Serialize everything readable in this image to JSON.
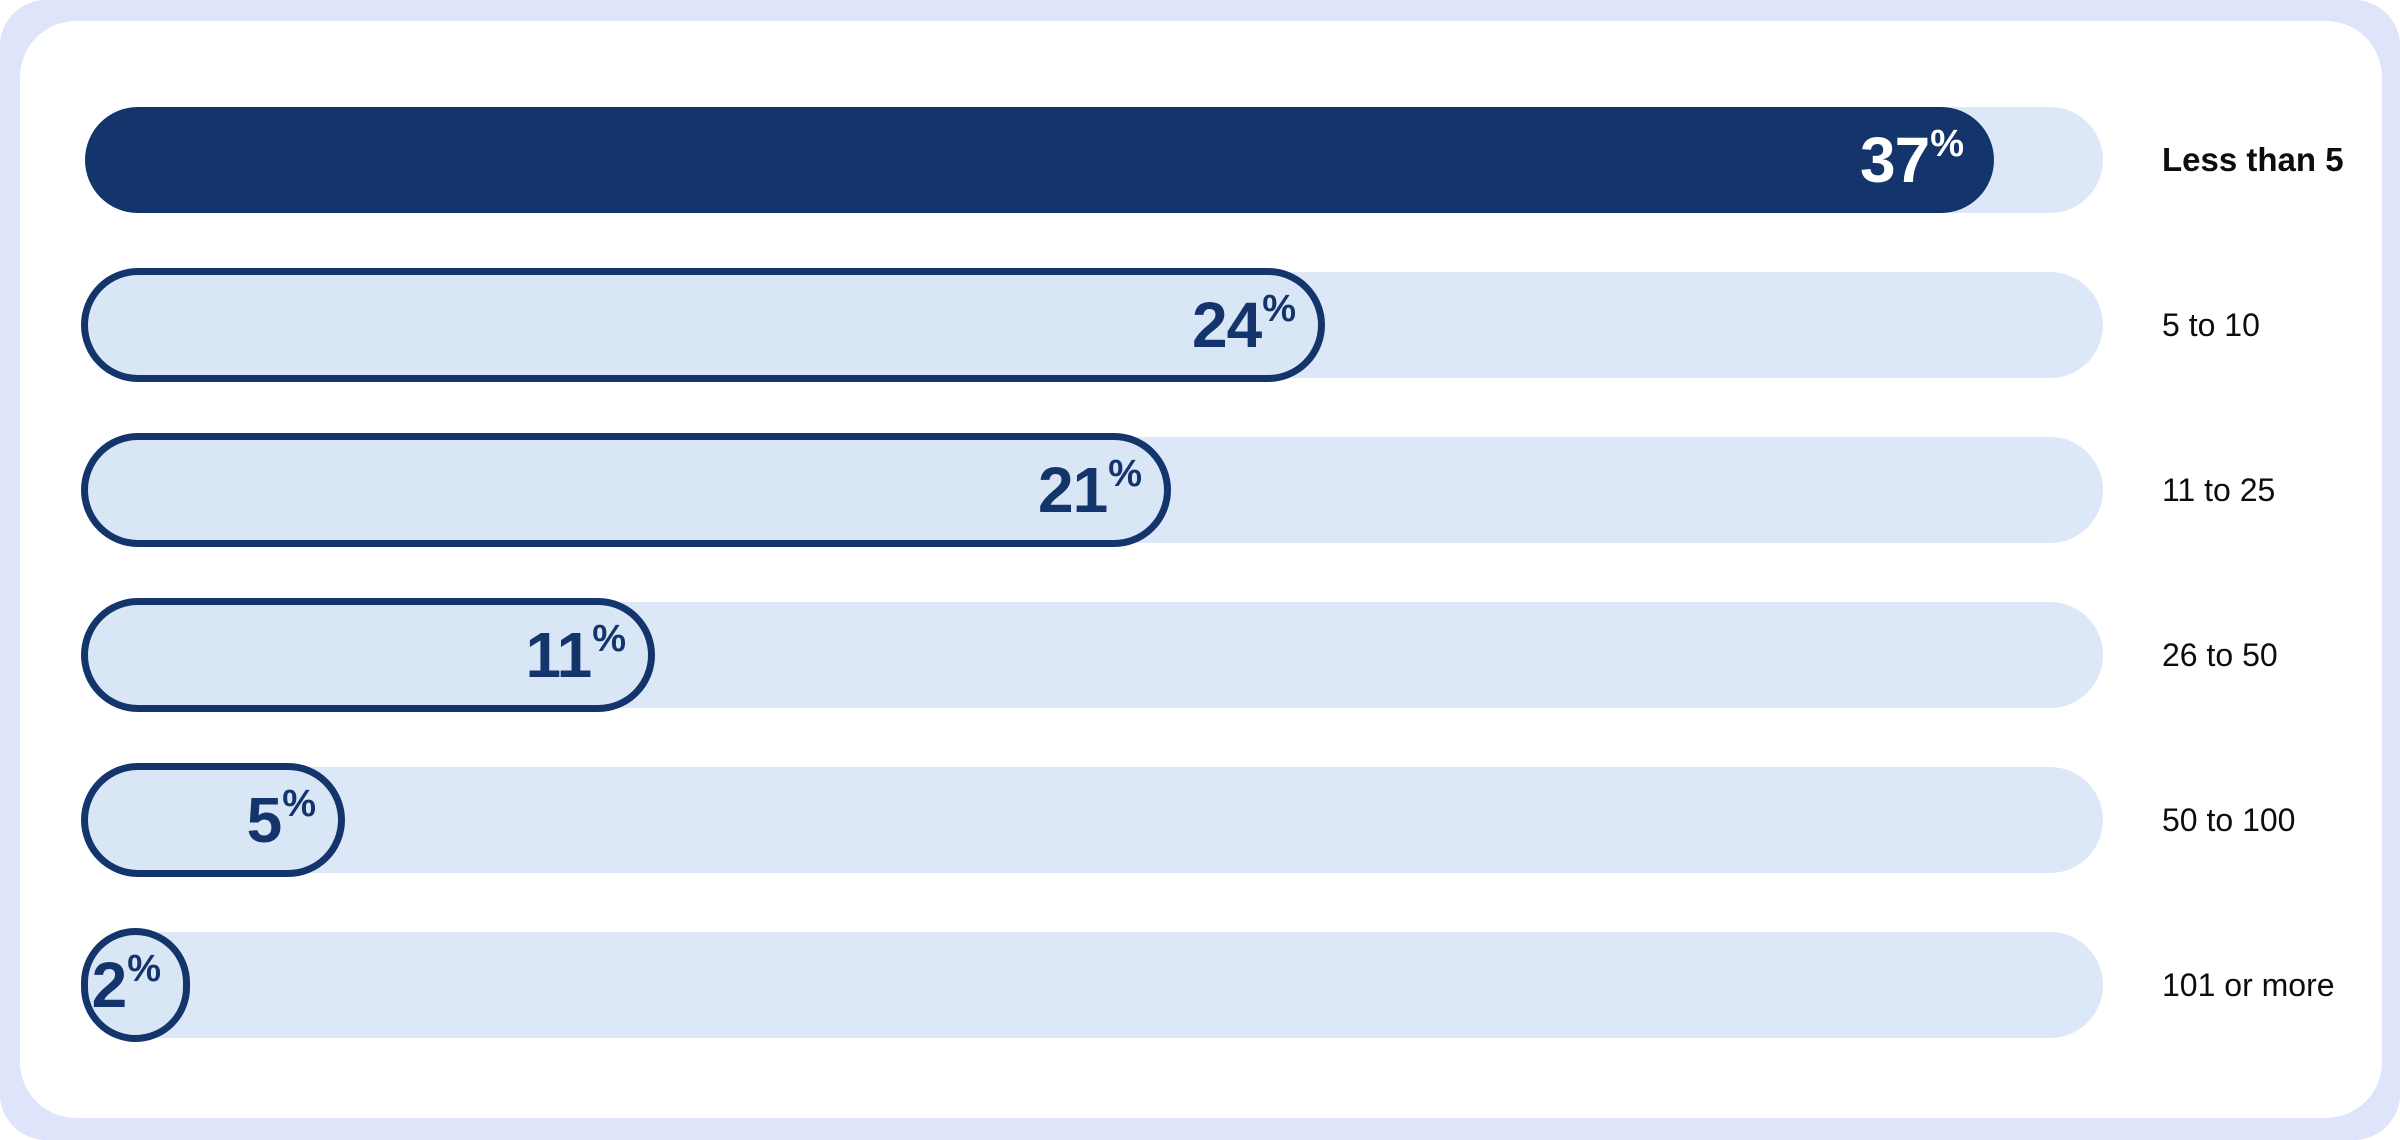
{
  "chart_data": {
    "type": "bar",
    "orientation": "horizontal",
    "title": "",
    "unit": "%",
    "categories": [
      "Less than 5",
      "5 to 10",
      "11 to 25",
      "26 to 50",
      "50 to 100",
      "101 or more"
    ],
    "values": [
      37,
      24,
      21,
      11,
      5,
      2
    ],
    "highlight_index": 0,
    "value_labels_position": "inside-right",
    "category_labels_position": "right-of-track",
    "axis": "none",
    "grid": false,
    "legend_position": "none"
  },
  "colors": {
    "highlight_bar": "#14356C",
    "bar_fill": "#D9E6F6",
    "bar_outline": "#14356C",
    "track": "#DCE8F8",
    "frame_background": "#DEE4FA",
    "card_background": "#FFFFFF",
    "value_text": "#14356C",
    "value_text_on_highlight": "#FFFFFF",
    "category_label": "#0D0D0D"
  }
}
